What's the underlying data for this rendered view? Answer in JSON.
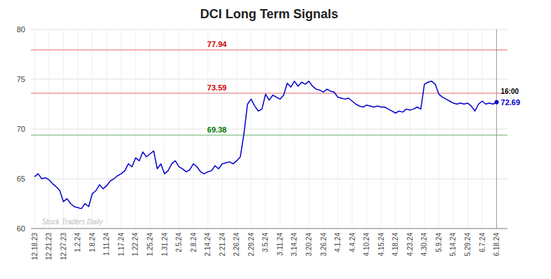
{
  "chart_data": {
    "type": "line",
    "title": "DCI Long Term Signals",
    "watermark": "Stock Traders Daily",
    "color": "#0000cc",
    "grid": true,
    "ylim": [
      60,
      80
    ],
    "yticks": [
      60,
      65,
      70,
      75,
      80
    ],
    "categories": [
      "12.18.23",
      null,
      null,
      null,
      "12.21.23",
      null,
      null,
      null,
      "12.27.23",
      null,
      null,
      null,
      "1.2.24",
      null,
      null,
      null,
      "1.8.24",
      null,
      null,
      null,
      "1.11.24",
      null,
      null,
      null,
      "1.17.24",
      null,
      null,
      null,
      "1.22.24",
      null,
      null,
      null,
      "1.25.24",
      null,
      null,
      null,
      "1.31.24",
      null,
      null,
      null,
      "2.5.24",
      null,
      null,
      null,
      "2.8.24",
      null,
      null,
      null,
      "2.14.24",
      null,
      null,
      null,
      "2.21.24",
      null,
      null,
      null,
      "2.26.24",
      null,
      null,
      null,
      "2.29.24",
      null,
      null,
      null,
      "3.5.24",
      null,
      null,
      null,
      "3.11.24",
      null,
      null,
      null,
      "3.14.24",
      null,
      null,
      null,
      "3.20.24",
      null,
      null,
      null,
      "3.26.24",
      null,
      null,
      null,
      "4.1.24",
      null,
      null,
      null,
      "4.4.24",
      null,
      null,
      null,
      "4.10.24",
      null,
      null,
      null,
      "4.15.24",
      null,
      null,
      null,
      "4.18.24",
      null,
      null,
      null,
      "4.23.24",
      null,
      null,
      null,
      "4.30.24",
      null,
      null,
      null,
      "5.9.24",
      null,
      null,
      null,
      "5.14.24",
      null,
      null,
      null,
      "5.29.24",
      null,
      null,
      null,
      "6.7.24",
      null,
      null,
      null,
      "6.18.24"
    ],
    "values": [
      65.2,
      65.5,
      65.0,
      65.1,
      64.9,
      64.5,
      64.2,
      63.8,
      62.7,
      63.0,
      62.5,
      62.2,
      62.1,
      62.0,
      62.5,
      62.2,
      63.5,
      63.8,
      64.4,
      64.0,
      64.3,
      64.8,
      65.0,
      65.3,
      65.5,
      65.8,
      66.5,
      66.2,
      67.1,
      66.8,
      67.7,
      67.2,
      67.5,
      67.8,
      66.0,
      66.5,
      65.5,
      65.8,
      66.5,
      66.8,
      66.2,
      66.0,
      65.7,
      65.9,
      66.5,
      66.2,
      65.7,
      65.5,
      65.7,
      65.8,
      66.3,
      66.0,
      66.5,
      66.6,
      66.7,
      66.5,
      66.8,
      67.2,
      69.5,
      72.5,
      73.0,
      72.3,
      71.8,
      72.0,
      73.5,
      72.9,
      73.4,
      73.2,
      73.0,
      73.4,
      74.6,
      74.2,
      74.8,
      74.3,
      74.7,
      74.5,
      74.8,
      74.3,
      74.0,
      73.9,
      73.7,
      74.0,
      73.8,
      73.7,
      73.2,
      73.1,
      73.0,
      73.1,
      72.8,
      72.5,
      72.3,
      72.2,
      72.4,
      72.3,
      72.2,
      72.3,
      72.2,
      72.2,
      72.0,
      71.8,
      71.6,
      71.8,
      71.7,
      72.0,
      71.9,
      72.0,
      72.2,
      72.0,
      74.5,
      74.7,
      74.8,
      74.5,
      73.5,
      73.2,
      73.0,
      72.8,
      72.6,
      72.5,
      72.6,
      72.5,
      72.6,
      72.3,
      71.8,
      72.5,
      72.8,
      72.5,
      72.6,
      72.5,
      72.69
    ],
    "reference_lines": [
      {
        "value": 77.94,
        "label": "77.94",
        "color": "#cc0000"
      },
      {
        "value": 73.59,
        "label": "73.59",
        "color": "#cc0000"
      },
      {
        "value": 69.38,
        "label": "69.38",
        "color": "#007700"
      }
    ],
    "last_point": {
      "value": 72.69,
      "label": "16:00"
    }
  }
}
